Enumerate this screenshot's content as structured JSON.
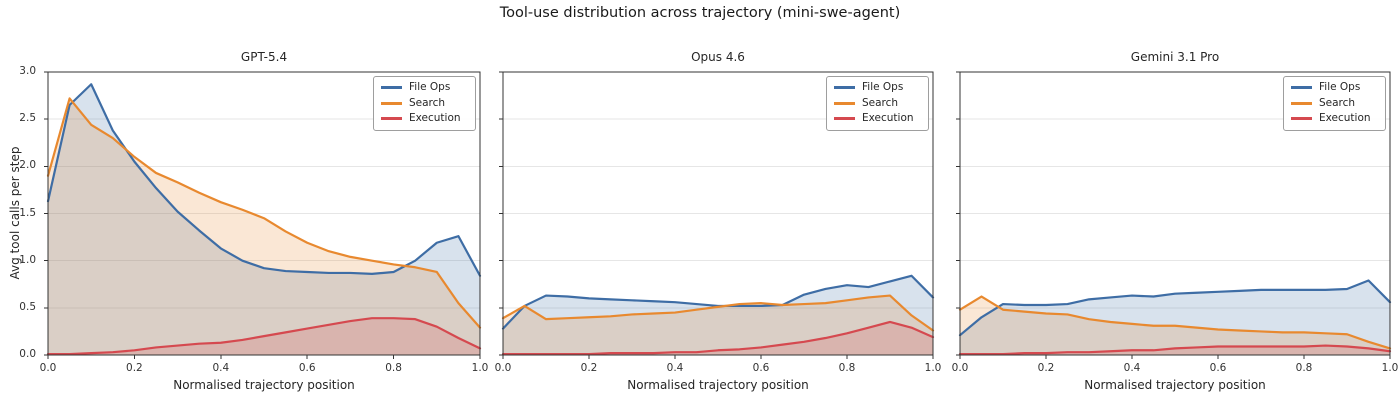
{
  "figure": {
    "suptitle": "Tool-use distribution across trajectory (mini-swe-agent)",
    "ylabel": "Avg tool calls per step",
    "xlabel": "Normalised trajectory position",
    "background": "#ffffff",
    "grid_color": "#e6e6e6",
    "spine_color": "#333333",
    "text_color": "#262626",
    "accent_colors": {
      "file_ops": "#3e6da5",
      "search": "#e8892f",
      "execution": "#d5494f"
    }
  },
  "legend": {
    "entries": [
      "File Ops",
      "Search",
      "Execution"
    ],
    "position": "upper right"
  },
  "chart_data": [
    {
      "type": "line",
      "title": "GPT-5.4",
      "xlabel": "Normalised trajectory position",
      "ylabel": "Avg tool calls per step",
      "xlim": [
        0,
        1
      ],
      "ylim": [
        0,
        3
      ],
      "x_ticks": [
        0,
        0.2,
        0.4,
        0.6,
        0.8,
        1.0
      ],
      "y_ticks": [
        0,
        0.5,
        1.0,
        1.5,
        2.0,
        2.5,
        3.0
      ],
      "grid": "horizontal",
      "legend_position": "upper right",
      "x": [
        0,
        0.05,
        0.1,
        0.15,
        0.2,
        0.25,
        0.3,
        0.35,
        0.4,
        0.45,
        0.5,
        0.55,
        0.6,
        0.65,
        0.7,
        0.75,
        0.8,
        0.85,
        0.9,
        0.95,
        1.0
      ],
      "series": [
        {
          "name": "File Ops",
          "color": "#3e6da5",
          "fill_opacity": 0.2,
          "values": [
            1.63,
            2.65,
            2.87,
            2.38,
            2.05,
            1.77,
            1.52,
            1.32,
            1.13,
            1.0,
            0.92,
            0.89,
            0.88,
            0.87,
            0.87,
            0.86,
            0.88,
            1.0,
            1.19,
            1.26,
            0.84
          ]
        },
        {
          "name": "Search",
          "color": "#e8892f",
          "fill_opacity": 0.2,
          "values": [
            1.9,
            2.72,
            2.44,
            2.3,
            2.1,
            1.93,
            1.83,
            1.72,
            1.62,
            1.54,
            1.45,
            1.31,
            1.19,
            1.1,
            1.04,
            1.0,
            0.96,
            0.93,
            0.88,
            0.55,
            0.29
          ]
        },
        {
          "name": "Execution",
          "color": "#d5494f",
          "fill_opacity": 0.2,
          "values": [
            0.01,
            0.01,
            0.02,
            0.03,
            0.05,
            0.08,
            0.1,
            0.12,
            0.13,
            0.16,
            0.2,
            0.24,
            0.28,
            0.32,
            0.36,
            0.39,
            0.39,
            0.38,
            0.3,
            0.18,
            0.07
          ]
        }
      ]
    },
    {
      "type": "line",
      "title": "Opus 4.6",
      "xlabel": "Normalised trajectory position",
      "ylabel": "Avg tool calls per step",
      "xlim": [
        0,
        1
      ],
      "ylim": [
        0,
        3
      ],
      "x_ticks": [
        0,
        0.2,
        0.4,
        0.6,
        0.8,
        1.0
      ],
      "y_ticks": [
        0,
        0.5,
        1.0,
        1.5,
        2.0,
        2.5,
        3.0
      ],
      "grid": "horizontal",
      "legend_position": "upper right",
      "x": [
        0,
        0.05,
        0.1,
        0.15,
        0.2,
        0.25,
        0.3,
        0.35,
        0.4,
        0.45,
        0.5,
        0.55,
        0.6,
        0.65,
        0.7,
        0.75,
        0.8,
        0.85,
        0.9,
        0.95,
        1.0
      ],
      "series": [
        {
          "name": "File Ops",
          "color": "#3e6da5",
          "fill_opacity": 0.2,
          "values": [
            0.28,
            0.52,
            0.63,
            0.62,
            0.6,
            0.59,
            0.58,
            0.57,
            0.56,
            0.54,
            0.52,
            0.52,
            0.52,
            0.53,
            0.64,
            0.7,
            0.74,
            0.72,
            0.78,
            0.84,
            0.61
          ]
        },
        {
          "name": "Search",
          "color": "#e8892f",
          "fill_opacity": 0.2,
          "values": [
            0.39,
            0.52,
            0.38,
            0.39,
            0.4,
            0.41,
            0.43,
            0.44,
            0.45,
            0.48,
            0.51,
            0.54,
            0.55,
            0.53,
            0.54,
            0.55,
            0.58,
            0.61,
            0.63,
            0.42,
            0.26
          ]
        },
        {
          "name": "Execution",
          "color": "#d5494f",
          "fill_opacity": 0.2,
          "values": [
            0.01,
            0.01,
            0.01,
            0.01,
            0.01,
            0.02,
            0.02,
            0.02,
            0.03,
            0.03,
            0.05,
            0.06,
            0.08,
            0.11,
            0.14,
            0.18,
            0.23,
            0.29,
            0.35,
            0.29,
            0.19
          ]
        }
      ]
    },
    {
      "type": "line",
      "title": "Gemini 3.1 Pro",
      "xlabel": "Normalised trajectory position",
      "ylabel": "Avg tool calls per step",
      "xlim": [
        0,
        1
      ],
      "ylim": [
        0,
        3
      ],
      "x_ticks": [
        0,
        0.2,
        0.4,
        0.6,
        0.8,
        1.0
      ],
      "y_ticks": [
        0,
        0.5,
        1.0,
        1.5,
        2.0,
        2.5,
        3.0
      ],
      "grid": "horizontal",
      "legend_position": "upper right",
      "x": [
        0,
        0.05,
        0.1,
        0.15,
        0.2,
        0.25,
        0.3,
        0.35,
        0.4,
        0.45,
        0.5,
        0.55,
        0.6,
        0.65,
        0.7,
        0.75,
        0.8,
        0.85,
        0.9,
        0.95,
        1.0
      ],
      "series": [
        {
          "name": "File Ops",
          "color": "#3e6da5",
          "fill_opacity": 0.2,
          "values": [
            0.21,
            0.4,
            0.54,
            0.53,
            0.53,
            0.54,
            0.59,
            0.61,
            0.63,
            0.62,
            0.65,
            0.66,
            0.67,
            0.68,
            0.69,
            0.69,
            0.69,
            0.69,
            0.7,
            0.79,
            0.56
          ]
        },
        {
          "name": "Search",
          "color": "#e8892f",
          "fill_opacity": 0.2,
          "values": [
            0.48,
            0.62,
            0.48,
            0.46,
            0.44,
            0.43,
            0.38,
            0.35,
            0.33,
            0.31,
            0.31,
            0.29,
            0.27,
            0.26,
            0.25,
            0.24,
            0.24,
            0.23,
            0.22,
            0.14,
            0.07
          ]
        },
        {
          "name": "Execution",
          "color": "#d5494f",
          "fill_opacity": 0.2,
          "values": [
            0.01,
            0.01,
            0.01,
            0.02,
            0.02,
            0.03,
            0.03,
            0.04,
            0.05,
            0.05,
            0.07,
            0.08,
            0.09,
            0.09,
            0.09,
            0.09,
            0.09,
            0.1,
            0.09,
            0.07,
            0.04
          ]
        }
      ]
    }
  ]
}
